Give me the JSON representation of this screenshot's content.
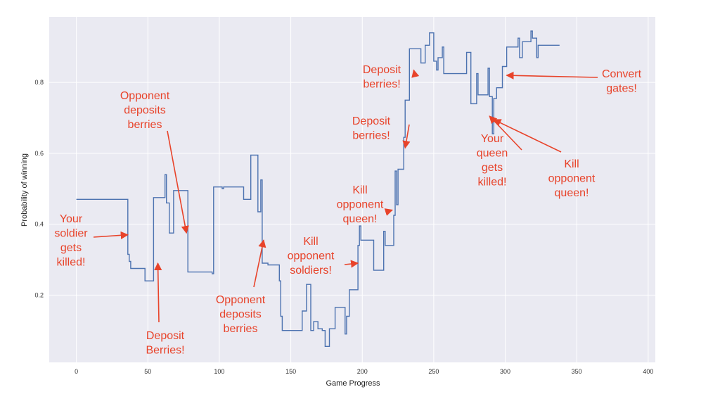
{
  "chart_data": {
    "type": "line",
    "xlabel": "Game Progress",
    "ylabel": "Probability of winning",
    "xlim": [
      -19,
      405
    ],
    "ylim": [
      0.01,
      0.985
    ],
    "xticks": [
      0,
      50,
      100,
      150,
      200,
      250,
      300,
      350,
      400
    ],
    "yticks": [
      0.2,
      0.4,
      0.6,
      0.8
    ],
    "grid": true,
    "background": "#eaeaf2",
    "grid_color": "#ffffff",
    "line_color": "#4c72b0",
    "annotation_color": "#e8432a",
    "series": [
      {
        "points": [
          [
            0,
            0.47
          ],
          [
            36,
            0.47
          ],
          [
            36,
            0.315
          ],
          [
            37,
            0.315
          ],
          [
            37,
            0.295
          ],
          [
            38,
            0.295
          ],
          [
            38,
            0.275
          ],
          [
            48,
            0.275
          ],
          [
            48,
            0.24
          ],
          [
            54,
            0.24
          ],
          [
            54,
            0.475
          ],
          [
            62,
            0.475
          ],
          [
            62,
            0.54
          ],
          [
            63,
            0.54
          ],
          [
            63,
            0.46
          ],
          [
            65,
            0.46
          ],
          [
            65,
            0.375
          ],
          [
            68,
            0.375
          ],
          [
            68,
            0.495
          ],
          [
            78,
            0.495
          ],
          [
            78,
            0.265
          ],
          [
            95,
            0.265
          ],
          [
            95,
            0.26
          ],
          [
            96,
            0.26
          ],
          [
            96,
            0.505
          ],
          [
            102,
            0.505
          ],
          [
            102,
            0.5
          ],
          [
            103,
            0.5
          ],
          [
            103,
            0.505
          ],
          [
            117,
            0.505
          ],
          [
            117,
            0.47
          ],
          [
            122,
            0.47
          ],
          [
            122,
            0.595
          ],
          [
            127,
            0.595
          ],
          [
            127,
            0.435
          ],
          [
            129,
            0.435
          ],
          [
            129,
            0.525
          ],
          [
            130,
            0.525
          ],
          [
            130,
            0.29
          ],
          [
            134,
            0.29
          ],
          [
            134,
            0.285
          ],
          [
            142,
            0.285
          ],
          [
            142,
            0.24
          ],
          [
            143,
            0.24
          ],
          [
            143,
            0.14
          ],
          [
            144,
            0.14
          ],
          [
            144,
            0.1
          ],
          [
            158,
            0.1
          ],
          [
            158,
            0.155
          ],
          [
            161,
            0.155
          ],
          [
            161,
            0.23
          ],
          [
            164,
            0.23
          ],
          [
            164,
            0.1
          ],
          [
            166,
            0.1
          ],
          [
            166,
            0.125
          ],
          [
            169,
            0.125
          ],
          [
            169,
            0.105
          ],
          [
            172,
            0.105
          ],
          [
            172,
            0.1
          ],
          [
            174,
            0.1
          ],
          [
            174,
            0.055
          ],
          [
            177,
            0.055
          ],
          [
            177,
            0.105
          ],
          [
            181,
            0.105
          ],
          [
            181,
            0.165
          ],
          [
            188,
            0.165
          ],
          [
            188,
            0.09
          ],
          [
            189,
            0.09
          ],
          [
            189,
            0.14
          ],
          [
            191,
            0.14
          ],
          [
            191,
            0.215
          ],
          [
            197,
            0.215
          ],
          [
            197,
            0.34
          ],
          [
            198,
            0.34
          ],
          [
            198,
            0.395
          ],
          [
            199,
            0.395
          ],
          [
            199,
            0.355
          ],
          [
            208,
            0.355
          ],
          [
            208,
            0.27
          ],
          [
            215,
            0.27
          ],
          [
            215,
            0.38
          ],
          [
            216,
            0.38
          ],
          [
            216,
            0.34
          ],
          [
            222,
            0.34
          ],
          [
            222,
            0.425
          ],
          [
            223,
            0.425
          ],
          [
            223,
            0.55
          ],
          [
            224,
            0.55
          ],
          [
            224,
            0.455
          ],
          [
            225,
            0.455
          ],
          [
            225,
            0.555
          ],
          [
            229,
            0.555
          ],
          [
            229,
            0.645
          ],
          [
            230,
            0.645
          ],
          [
            230,
            0.75
          ],
          [
            233,
            0.75
          ],
          [
            233,
            0.895
          ],
          [
            241,
            0.895
          ],
          [
            241,
            0.855
          ],
          [
            244,
            0.855
          ],
          [
            244,
            0.905
          ],
          [
            247,
            0.905
          ],
          [
            247,
            0.94
          ],
          [
            250,
            0.94
          ],
          [
            250,
            0.86
          ],
          [
            252,
            0.86
          ],
          [
            252,
            0.835
          ],
          [
            253,
            0.835
          ],
          [
            253,
            0.87
          ],
          [
            256,
            0.87
          ],
          [
            256,
            0.9
          ],
          [
            257,
            0.9
          ],
          [
            257,
            0.825
          ],
          [
            273,
            0.825
          ],
          [
            273,
            0.885
          ],
          [
            276,
            0.885
          ],
          [
            276,
            0.74
          ],
          [
            280,
            0.74
          ],
          [
            280,
            0.825
          ],
          [
            281,
            0.825
          ],
          [
            281,
            0.765
          ],
          [
            288,
            0.765
          ],
          [
            288,
            0.84
          ],
          [
            289,
            0.84
          ],
          [
            289,
            0.76
          ],
          [
            291,
            0.76
          ],
          [
            291,
            0.655
          ],
          [
            292,
            0.655
          ],
          [
            292,
            0.755
          ],
          [
            294,
            0.755
          ],
          [
            294,
            0.785
          ],
          [
            298,
            0.785
          ],
          [
            298,
            0.845
          ],
          [
            301,
            0.845
          ],
          [
            301,
            0.9
          ],
          [
            309,
            0.9
          ],
          [
            309,
            0.925
          ],
          [
            310,
            0.925
          ],
          [
            310,
            0.87
          ],
          [
            312,
            0.87
          ],
          [
            312,
            0.915
          ],
          [
            318,
            0.915
          ],
          [
            318,
            0.945
          ],
          [
            319,
            0.945
          ],
          [
            319,
            0.925
          ],
          [
            322,
            0.925
          ],
          [
            322,
            0.87
          ],
          [
            323,
            0.87
          ],
          [
            323,
            0.905
          ],
          [
            338,
            0.905
          ]
        ]
      }
    ],
    "annotations": [
      {
        "lines": [
          "Your",
          "soldier",
          "gets",
          "killed!"
        ],
        "arrow_to": [
          36,
          0.37
        ]
      },
      {
        "lines": [
          "Deposit",
          "Berries!"
        ],
        "arrow_to": [
          57,
          0.29
        ]
      },
      {
        "lines": [
          "Opponent",
          "deposits",
          "berries"
        ],
        "arrow_to": [
          77,
          0.375
        ]
      },
      {
        "lines": [
          "Opponent",
          "deposits",
          "berries"
        ],
        "arrow_to": [
          131,
          0.355
        ]
      },
      {
        "lines": [
          "Kill",
          "opponent",
          "soldiers!"
        ],
        "arrow_to": [
          197,
          0.29
        ]
      },
      {
        "lines": [
          "Kill",
          "opponent",
          "queen!"
        ],
        "arrow_to": [
          221,
          0.44
        ]
      },
      {
        "lines": [
          "Deposit",
          "berries!"
        ],
        "arrow_to": [
          230,
          0.615
        ]
      },
      {
        "lines": [
          "Deposit",
          "berries!"
        ],
        "arrow_to": [
          236,
          0.835
        ]
      },
      {
        "lines": [
          "Your",
          "queen",
          "gets",
          "killed!"
        ],
        "arrow_to": [
          289,
          0.705
        ]
      },
      {
        "lines": [
          "Kill",
          "opponent",
          "queen!"
        ],
        "arrow_to": [
          292,
          0.695
        ]
      },
      {
        "lines": [
          "Convert",
          "gates!"
        ],
        "arrow_to": [
          301,
          0.82
        ]
      }
    ]
  }
}
